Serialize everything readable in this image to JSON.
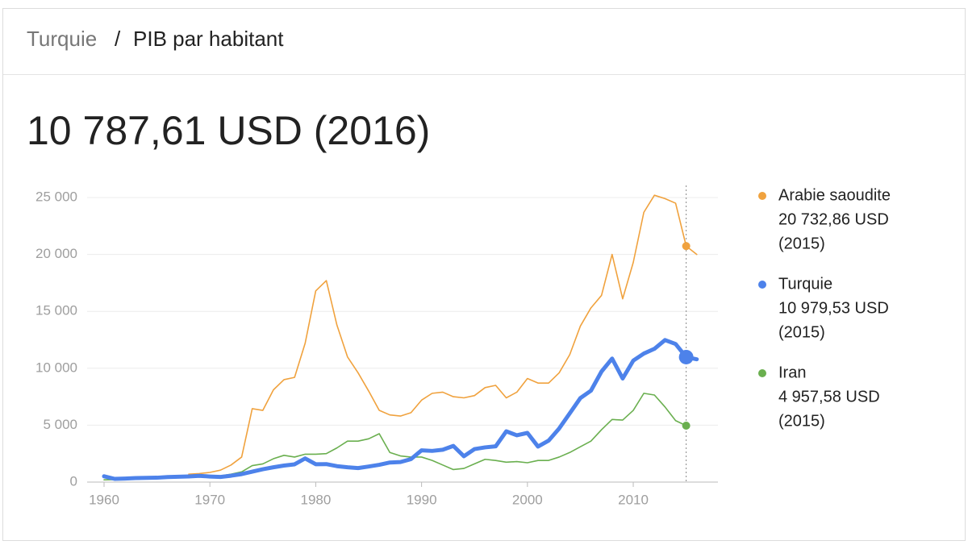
{
  "header": {
    "entity": "Turquie",
    "separator": "/",
    "title": "PIB par habitant"
  },
  "chart_data": {
    "type": "line",
    "headline": "10 787,61 USD (2016)",
    "x": [
      1960,
      1961,
      1962,
      1963,
      1964,
      1965,
      1966,
      1967,
      1968,
      1969,
      1970,
      1971,
      1972,
      1973,
      1974,
      1975,
      1976,
      1977,
      1978,
      1979,
      1980,
      1981,
      1982,
      1983,
      1984,
      1985,
      1986,
      1987,
      1988,
      1989,
      1990,
      1991,
      1992,
      1993,
      1994,
      1995,
      1996,
      1997,
      1998,
      1999,
      2000,
      2001,
      2002,
      2003,
      2004,
      2005,
      2006,
      2007,
      2008,
      2009,
      2010,
      2011,
      2012,
      2013,
      2014,
      2015,
      2016
    ],
    "xlim": [
      1958.4,
      2018
    ],
    "xticks": [
      1960,
      1970,
      1980,
      1990,
      2000,
      2010
    ],
    "ylim": [
      0,
      25000
    ],
    "yticks": [
      {
        "value": 0,
        "label": "0"
      },
      {
        "value": 5000,
        "label": "5 000"
      },
      {
        "value": 10000,
        "label": "10 000"
      },
      {
        "value": 15000,
        "label": "15 000"
      },
      {
        "value": 20000,
        "label": "20 000"
      },
      {
        "value": 25000,
        "label": "25 000"
      }
    ],
    "grid": true,
    "marker_x": 2015,
    "series": [
      {
        "name": "Arabie saoudite",
        "color": "#f0a23e",
        "width": 1.6,
        "latest_label": "20 732,86 USD",
        "latest_date": "(2015)",
        "values": [
          null,
          null,
          null,
          null,
          null,
          null,
          null,
          null,
          700,
          750,
          850,
          1050,
          1500,
          2200,
          6450,
          6300,
          8100,
          9000,
          9200,
          12200,
          16800,
          17700,
          13800,
          11000,
          9600,
          8000,
          6300,
          5900,
          5800,
          6100,
          7200,
          7800,
          7900,
          7500,
          7400,
          7600,
          8300,
          8500,
          7400,
          7900,
          9100,
          8700,
          8700,
          9600,
          11200,
          13700,
          15300,
          16400,
          20000,
          16100,
          19300,
          23700,
          25200,
          24900,
          24500,
          20732.86,
          20000
        ]
      },
      {
        "name": "Turquie",
        "color": "#4d82ea",
        "width": 5,
        "latest_label": "10 979,53 USD",
        "latest_date": "(2015)",
        "values": [
          509,
          283,
          310,
          350,
          370,
          385,
          440,
          470,
          500,
          550,
          490,
          450,
          560,
          700,
          920,
          1130,
          1300,
          1450,
          1560,
          2080,
          1570,
          1580,
          1400,
          1300,
          1230,
          1370,
          1520,
          1720,
          1760,
          2020,
          2790,
          2740,
          2840,
          3180,
          2270,
          2900,
          3050,
          3140,
          4460,
          4110,
          4320,
          3120,
          3640,
          4710,
          6040,
          7380,
          8030,
          9710,
          10850,
          9100,
          10670,
          11290,
          11710,
          12480,
          12130,
          10979.53,
          10787.61
        ]
      },
      {
        "name": "Iran",
        "color": "#6aaf4f",
        "width": 1.6,
        "latest_label": "4 957,58 USD",
        "latest_date": "(2015)",
        "values": [
          200,
          220,
          230,
          250,
          280,
          320,
          350,
          380,
          420,
          460,
          480,
          550,
          700,
          900,
          1450,
          1600,
          2050,
          2350,
          2200,
          2450,
          2450,
          2500,
          3000,
          3600,
          3600,
          3800,
          4250,
          2600,
          2300,
          2200,
          2200,
          1900,
          1500,
          1100,
          1200,
          1600,
          2000,
          1900,
          1750,
          1800,
          1700,
          1900,
          1900,
          2200,
          2600,
          3100,
          3600,
          4600,
          5500,
          5450,
          6300,
          7800,
          7650,
          6600,
          5400,
          4957.58,
          null
        ]
      }
    ]
  }
}
